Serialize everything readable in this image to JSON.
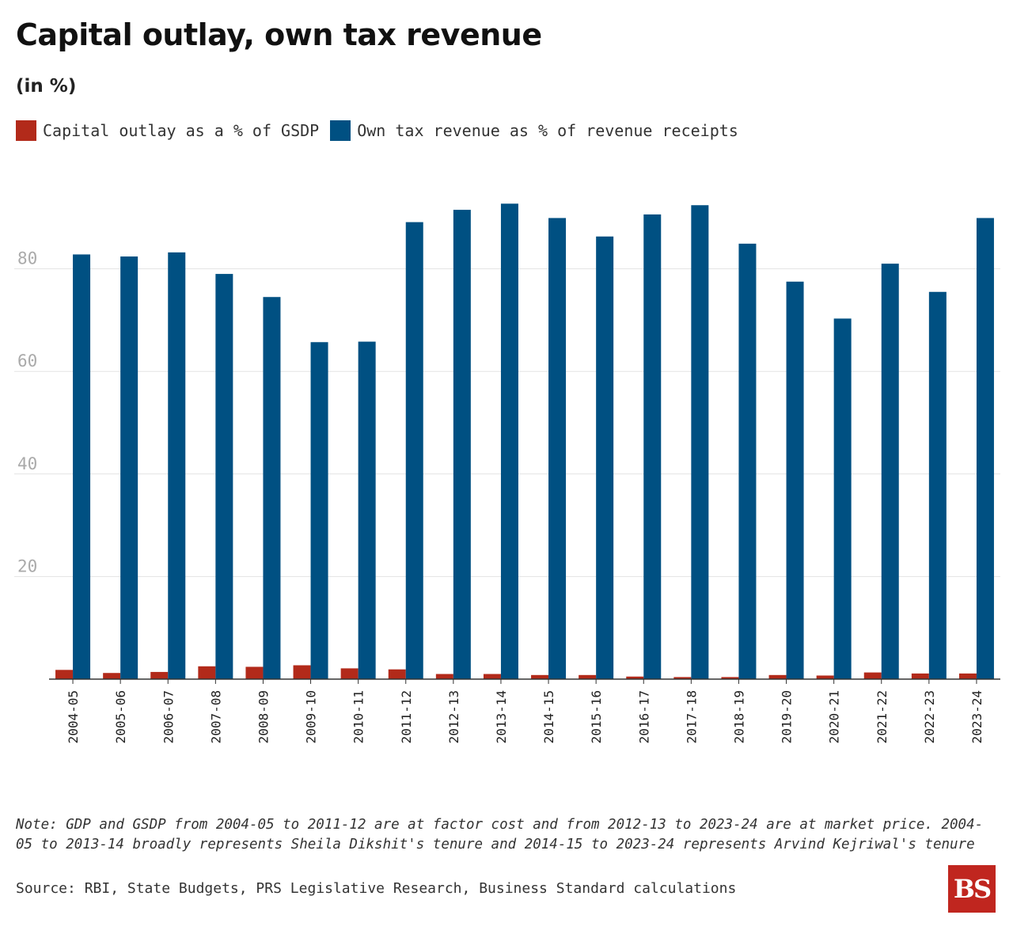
{
  "title": "Capital outlay, own tax revenue",
  "subtitle": "(in %)",
  "legend": [
    {
      "label": "Capital outlay as a % of GSDP",
      "color": "#b22a1a"
    },
    {
      "label": "Own tax revenue as % of revenue receipts",
      "color": "#005082"
    }
  ],
  "note": "Note: GDP and GSDP from 2004-05 to 2011-12 are at factor cost and from 2012-13 to 2023-24 are at market price. 2004-05 to 2013-14 broadly represents Sheila Dikshit's tenure and 2014-15 to 2023-24 represents Arvind Kejriwal's tenure",
  "source": "Source: RBI, State Budgets, PRS Legislative Research, Business Standard calculations",
  "logo": "BS",
  "chart_data": {
    "type": "bar",
    "categories": [
      "2004-05",
      "2005-06",
      "2006-07",
      "2007-08",
      "2008-09",
      "2009-10",
      "2010-11",
      "2011-12",
      "2012-13",
      "2013-14",
      "2014-15",
      "2015-16",
      "2016-17",
      "2017-18",
      "2018-19",
      "2019-20",
      "2020-21",
      "2021-22",
      "2022-23",
      "2023-24"
    ],
    "series": [
      {
        "name": "Capital outlay as a % of GSDP",
        "color": "#b22a1a",
        "values": [
          1.8,
          1.2,
          1.4,
          2.5,
          2.4,
          2.7,
          2.1,
          1.9,
          1.0,
          1.0,
          0.8,
          0.8,
          0.5,
          0.4,
          0.4,
          0.8,
          0.7,
          1.3,
          1.1,
          1.1
        ]
      },
      {
        "name": "Own tax revenue as % of revenue receipts",
        "color": "#005082",
        "values": [
          82.8,
          82.4,
          83.2,
          79.0,
          74.5,
          65.7,
          65.8,
          89.1,
          91.5,
          92.7,
          89.9,
          86.3,
          90.6,
          92.4,
          84.9,
          77.5,
          70.3,
          81.0,
          75.5,
          89.9
        ]
      }
    ],
    "yticks": [
      20,
      40,
      60,
      80
    ],
    "ylim": [
      0,
      100
    ],
    "xlabel": "",
    "ylabel": "",
    "grid": true,
    "legend_position": "top-left"
  }
}
